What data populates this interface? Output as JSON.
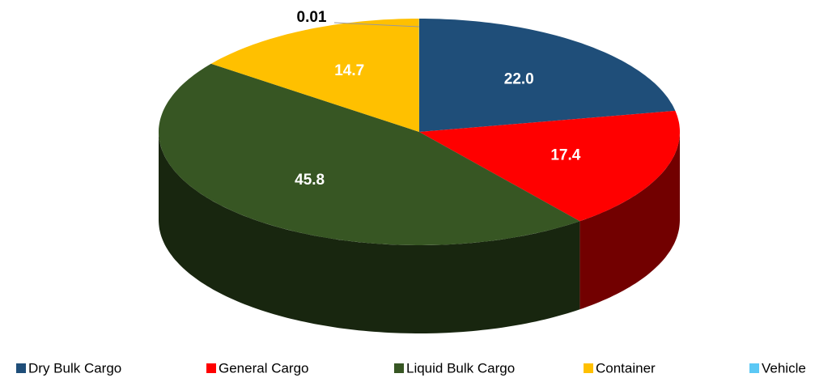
{
  "chart_data": {
    "type": "pie3d",
    "categories": [
      "Dry Bulk Cargo",
      "General Cargo",
      "Liquid Bulk Cargo",
      "Container",
      "Vehicle"
    ],
    "values": [
      22.0,
      17.4,
      45.8,
      14.7,
      0.01
    ],
    "value_labels": [
      "22.0",
      "17.4",
      "45.8",
      "14.7",
      "0.01"
    ],
    "colors": [
      "#1f4e79",
      "#ff0000",
      "#375623",
      "#ffc000",
      "#5bc8f5"
    ],
    "legend": "bottom"
  }
}
